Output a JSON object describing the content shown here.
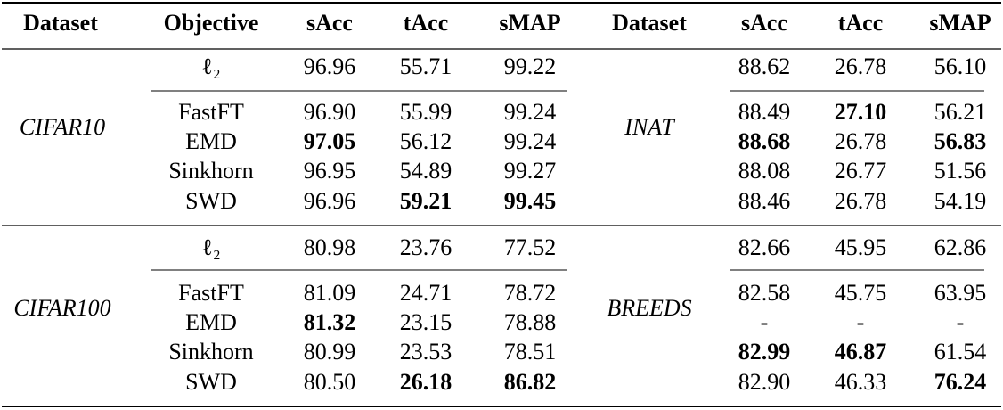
{
  "table": {
    "header": [
      "Dataset",
      "Objective",
      "sAcc",
      "tAcc",
      "sMAP",
      "Dataset",
      "sAcc",
      "tAcc",
      "sMAP"
    ],
    "blocks": [
      {
        "left_dataset": "CIFAR10",
        "right_dataset": "INAT",
        "rows": [
          {
            "objective": "ℓ₂",
            "cells": [
              "96.96",
              "55.71",
              "99.22",
              "88.62",
              "26.78",
              "56.10"
            ]
          },
          {
            "objective": "FastFT",
            "cells": [
              "96.90",
              "55.99",
              "99.24",
              "88.49",
              "27.10",
              "56.21"
            ],
            "bold": [
              4
            ]
          },
          {
            "objective": "EMD",
            "cells": [
              "97.05",
              "56.12",
              "99.24",
              "88.68",
              "26.78",
              "56.83"
            ],
            "bold": [
              0,
              3,
              5
            ]
          },
          {
            "objective": "Sinkhorn",
            "cells": [
              "96.95",
              "54.89",
              "99.27",
              "88.08",
              "26.77",
              "51.56"
            ]
          },
          {
            "objective": "SWD",
            "cells": [
              "96.96",
              "59.21",
              "99.45",
              "88.46",
              "26.78",
              "54.19"
            ],
            "bold": [
              1,
              2
            ]
          }
        ]
      },
      {
        "left_dataset": "CIFAR100",
        "right_dataset": "BREEDS",
        "rows": [
          {
            "objective": "ℓ₂",
            "cells": [
              "80.98",
              "23.76",
              "77.52",
              "82.66",
              "45.95",
              "62.86"
            ]
          },
          {
            "objective": "FastFT",
            "cells": [
              "81.09",
              "24.71",
              "78.72",
              "82.58",
              "45.75",
              "63.95"
            ]
          },
          {
            "objective": "EMD",
            "cells": [
              "81.32",
              "23.15",
              "78.88",
              "-",
              "-",
              "-"
            ],
            "bold": [
              0
            ]
          },
          {
            "objective": "Sinkhorn",
            "cells": [
              "80.99",
              "23.53",
              "78.51",
              "82.99",
              "46.87",
              "61.54"
            ],
            "bold": [
              3,
              4
            ]
          },
          {
            "objective": "SWD",
            "cells": [
              "80.50",
              "26.18",
              "86.82",
              "82.90",
              "46.33",
              "76.24"
            ],
            "bold": [
              1,
              2,
              5
            ]
          }
        ]
      }
    ]
  }
}
